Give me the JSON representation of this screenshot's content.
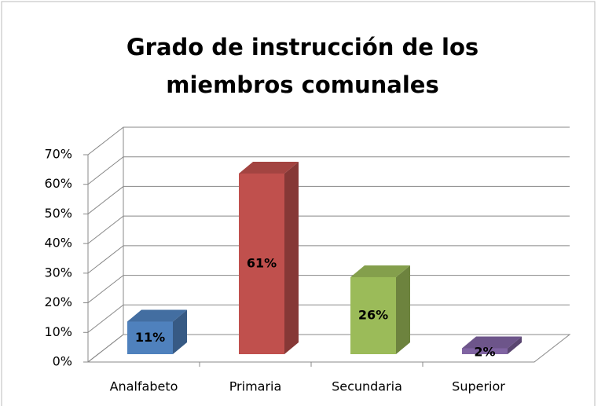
{
  "chart_data": {
    "type": "bar3d",
    "title": "Grado de instrucción de los miembros comunales",
    "categories": [
      "Analfabeto",
      "Primaria",
      "Secundaria",
      "Superior"
    ],
    "values": [
      11,
      61,
      26,
      2
    ],
    "value_labels": [
      "11%",
      "61%",
      "26%",
      "2%"
    ],
    "colors": [
      "#4f81bd",
      "#c0504d",
      "#9bbb59",
      "#8064a2"
    ],
    "ylim": [
      0,
      70
    ],
    "yticks": [
      {
        "value": 0,
        "label": "0%"
      },
      {
        "value": 10,
        "label": "10%"
      },
      {
        "value": 20,
        "label": "20%"
      },
      {
        "value": 30,
        "label": "30%"
      },
      {
        "value": 40,
        "label": "40%"
      },
      {
        "value": 50,
        "label": "50%"
      },
      {
        "value": 60,
        "label": "60%"
      },
      {
        "value": 70,
        "label": "70%"
      }
    ],
    "grid": true
  }
}
